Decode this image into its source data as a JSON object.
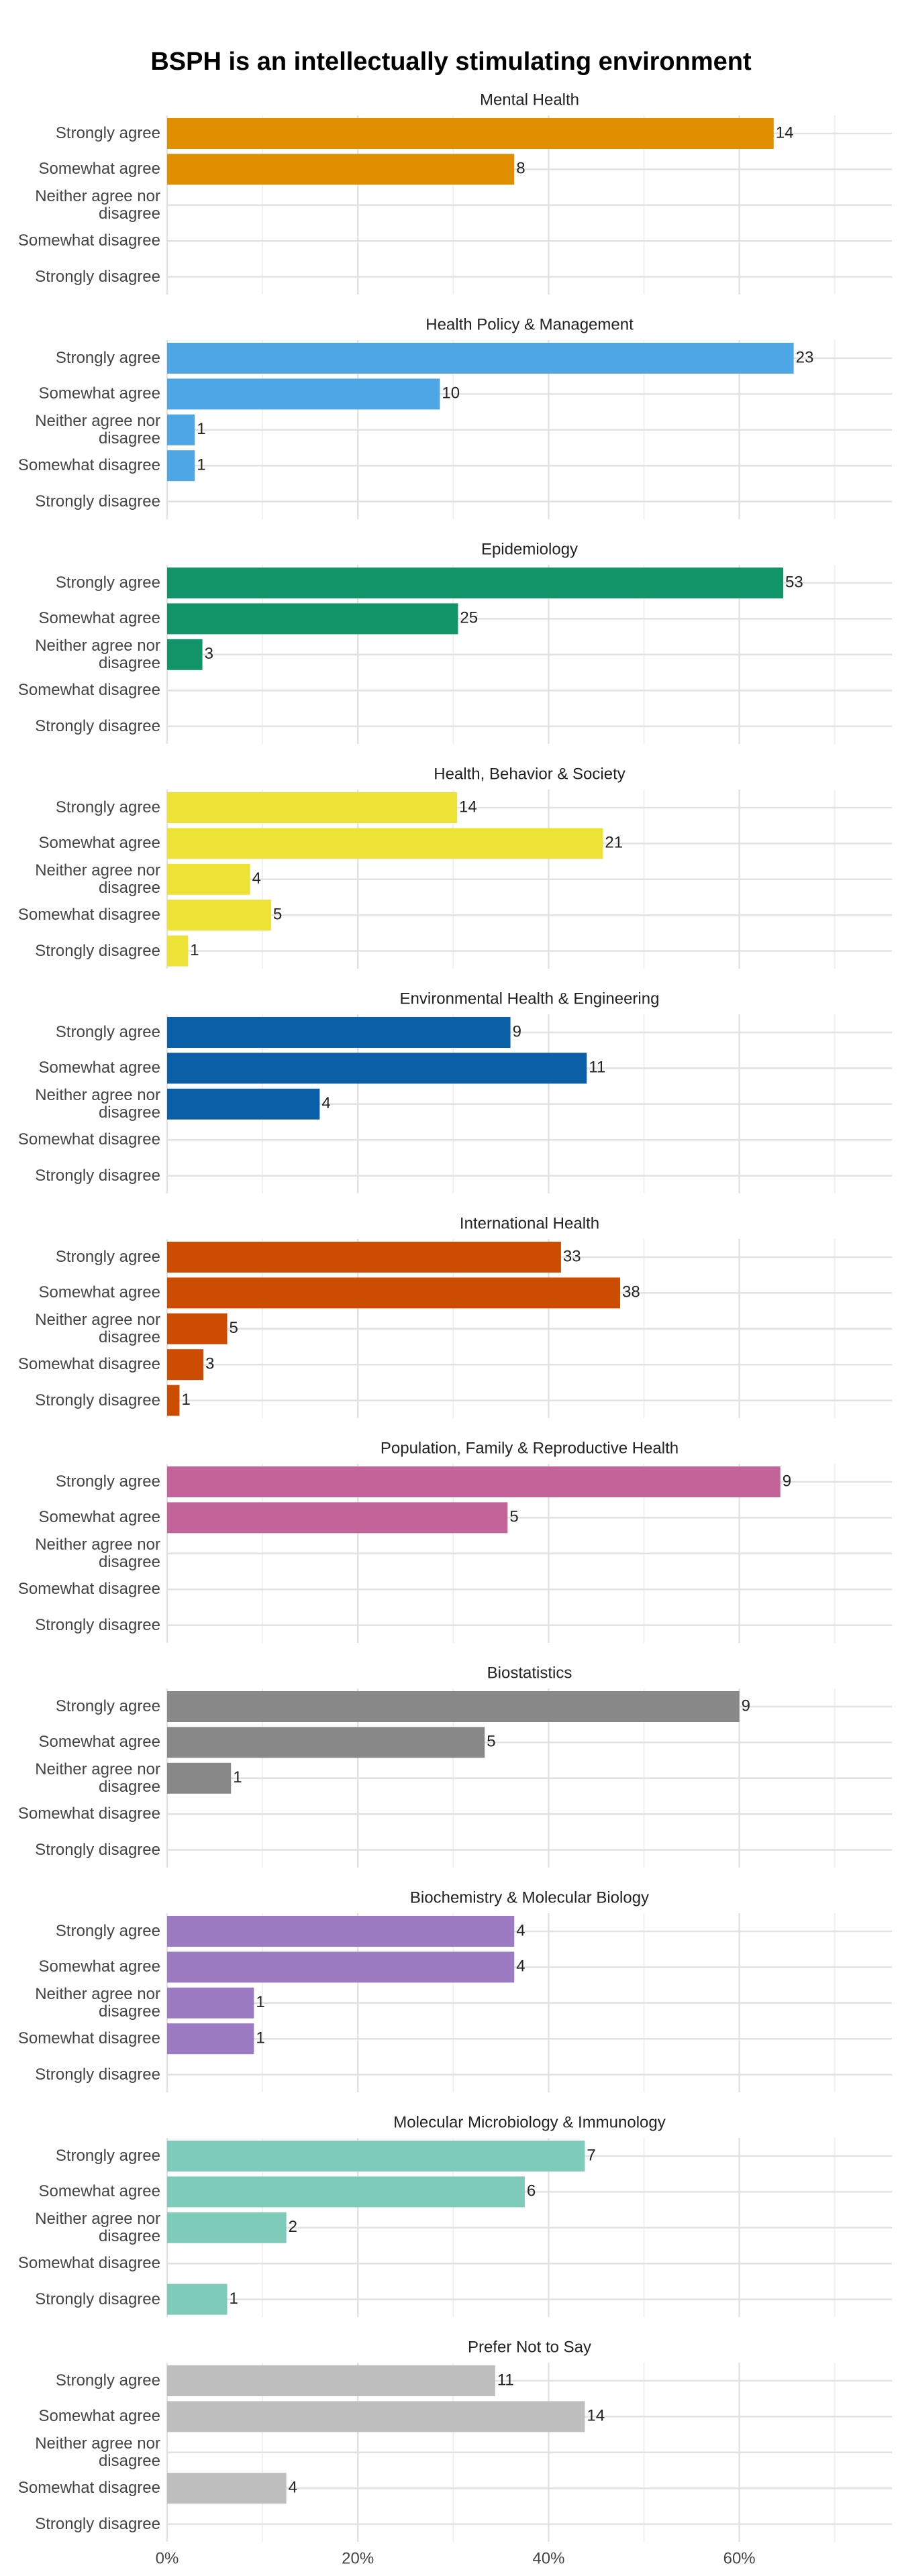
{
  "chart_data": {
    "type": "bar",
    "orientation": "horizontal",
    "title": "BSPH is an intellectually stimulating environment",
    "categories": [
      "Strongly agree",
      "Somewhat agree",
      "Neither agree nor disagree",
      "Somewhat disagree",
      "Strongly disagree"
    ],
    "xlim": [
      0,
      76
    ],
    "xticks": [
      {
        "value": 0,
        "label": "0%"
      },
      {
        "value": 20,
        "label": "20%"
      },
      {
        "value": 40,
        "label": "40%"
      },
      {
        "value": 60,
        "label": "60%"
      }
    ],
    "xminor": [
      10,
      30,
      50,
      70
    ],
    "grid": true,
    "series": [
      {
        "name": "Mental Health",
        "color": "#e08f00",
        "values": [
          63.6,
          36.4,
          null,
          null,
          null
        ],
        "counts": [
          14,
          8,
          null,
          null,
          null
        ]
      },
      {
        "name": "Health Policy & Management",
        "color": "#4ea6e4",
        "values": [
          65.7,
          28.6,
          2.9,
          2.9,
          null
        ],
        "counts": [
          23,
          10,
          1,
          1,
          null
        ]
      },
      {
        "name": "Epidemiology",
        "color": "#119467",
        "values": [
          64.6,
          30.5,
          3.7,
          null,
          null
        ],
        "counts": [
          53,
          25,
          3,
          null,
          null
        ]
      },
      {
        "name": "Health, Behavior & Society",
        "color": "#ede337",
        "values": [
          30.4,
          45.7,
          8.7,
          10.9,
          2.2
        ],
        "counts": [
          14,
          21,
          4,
          5,
          1
        ]
      },
      {
        "name": "Environmental Health & Engineering",
        "color": "#0a5fa6",
        "values": [
          36,
          44,
          16,
          null,
          null
        ],
        "counts": [
          9,
          11,
          4,
          null,
          null
        ]
      },
      {
        "name": "International Health",
        "color": "#cc4c02",
        "values": [
          41.3,
          47.5,
          6.3,
          3.8,
          1.3
        ],
        "counts": [
          33,
          38,
          5,
          3,
          1
        ]
      },
      {
        "name": "Population, Family & Reproductive Health",
        "color": "#c2649a",
        "values": [
          64.3,
          35.7,
          null,
          null,
          null
        ],
        "counts": [
          9,
          5,
          null,
          null,
          null
        ]
      },
      {
        "name": "Biostatistics",
        "color": "#888888",
        "values": [
          60,
          33.3,
          6.7,
          null,
          null
        ],
        "counts": [
          9,
          5,
          1,
          null,
          null
        ]
      },
      {
        "name": "Biochemistry & Molecular Biology",
        "color": "#9c7bc2",
        "values": [
          36.4,
          36.4,
          9.1,
          9.1,
          null
        ],
        "counts": [
          4,
          4,
          1,
          1,
          null
        ]
      },
      {
        "name": "Molecular Microbiology & Immunology",
        "color": "#7ecbb9",
        "values": [
          43.8,
          37.5,
          12.5,
          null,
          6.3
        ],
        "counts": [
          7,
          6,
          2,
          null,
          1
        ]
      },
      {
        "name": "Prefer Not to Say",
        "color": "#bebebe",
        "values": [
          34.4,
          43.8,
          null,
          12.5,
          null
        ],
        "counts": [
          11,
          14,
          null,
          4,
          null
        ]
      }
    ]
  }
}
